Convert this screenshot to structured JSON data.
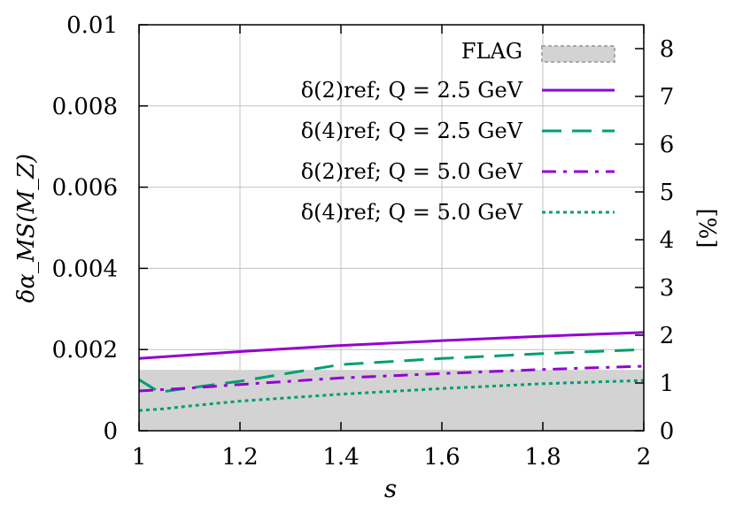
{
  "chart_data": {
    "type": "line",
    "xlabel": "s",
    "ylabel": "δα_MS(M_Z)",
    "y2label": "[%]",
    "xlim": [
      1,
      2
    ],
    "ylim": [
      0,
      0.01
    ],
    "y2lim": [
      0,
      8.5
    ],
    "x_ticks": [
      "1",
      "1.2",
      "1.4",
      "1.6",
      "1.8",
      "2"
    ],
    "y_ticks": [
      "0",
      "0.002",
      "0.004",
      "0.006",
      "0.008",
      "0.01"
    ],
    "y2_ticks": [
      "0",
      "1",
      "2",
      "3",
      "4",
      "5",
      "6",
      "7",
      "8"
    ],
    "grid": true,
    "legend_position": "top-right",
    "band": {
      "name": "FLAG",
      "y": [
        0,
        0.0015
      ],
      "color": "#d3d3d3"
    },
    "series": [
      {
        "name": "δ(2)ref; Q = 2.5 GeV",
        "color": "#9400d3",
        "style": "solid",
        "x": [
          1.0,
          1.2,
          1.4,
          1.6,
          1.8,
          2.0
        ],
        "y": [
          0.00178,
          0.00195,
          0.0021,
          0.00222,
          0.00233,
          0.00242
        ]
      },
      {
        "name": "δ(4)ref; Q = 2.5 GeV",
        "color": "#009e73",
        "style": "dashed",
        "x": [
          1.0,
          1.04,
          1.08,
          1.2,
          1.4,
          1.6,
          1.8,
          2.0
        ],
        "y": [
          0.00126,
          0.00095,
          0.00102,
          0.00122,
          0.00163,
          0.00178,
          0.0019,
          0.002
        ]
      },
      {
        "name": "δ(2)ref; Q = 5.0 GeV",
        "color": "#9400d3",
        "style": "dashdot",
        "x": [
          1.0,
          1.1,
          1.2,
          1.4,
          1.6,
          1.8,
          2.0
        ],
        "y": [
          0.00098,
          0.00105,
          0.00114,
          0.0013,
          0.00141,
          0.00151,
          0.00159
        ]
      },
      {
        "name": "δ(4)ref; Q = 5.0 GeV",
        "color": "#009e73",
        "style": "dotted",
        "x": [
          1.0,
          1.05,
          1.1,
          1.2,
          1.4,
          1.6,
          1.8,
          2.0
        ],
        "y": [
          0.0005,
          0.00054,
          0.00061,
          0.00073,
          0.0009,
          0.00104,
          0.00116,
          0.00124
        ]
      }
    ]
  }
}
